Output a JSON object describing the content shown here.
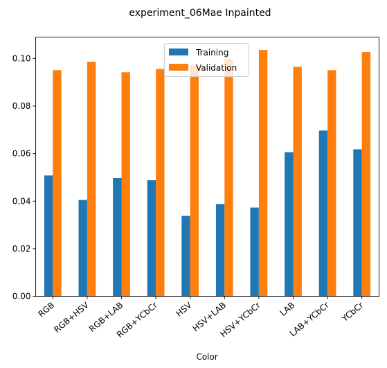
{
  "chart_data": {
    "type": "bar",
    "title": "experiment_06Mae Inpainted",
    "xlabel": "Color",
    "ylabel": "",
    "categories": [
      "RGB",
      "RGB+HSV",
      "RGB+LAB",
      "RGB+YCbCr",
      "HSV",
      "HSV+LAB",
      "HSV+YCbCr",
      "LAB",
      "LAB+YCbCr",
      "YCbCr"
    ],
    "series": [
      {
        "name": "Training",
        "color": "#1f77b4",
        "values": [
          0.0508,
          0.0405,
          0.0497,
          0.0488,
          0.0338,
          0.0388,
          0.0373,
          0.0606,
          0.0697,
          0.0618
        ]
      },
      {
        "name": "Validation",
        "color": "#ff7f0e",
        "values": [
          0.0951,
          0.0986,
          0.0942,
          0.0956,
          0.0974,
          0.0997,
          0.1036,
          0.0965,
          0.0951,
          0.1027
        ]
      }
    ],
    "ylim": [
      0,
      0.109
    ],
    "yticks": [
      "0.00",
      "0.02",
      "0.04",
      "0.06",
      "0.08",
      "0.10"
    ],
    "legend": "top-center",
    "grid": false
  }
}
